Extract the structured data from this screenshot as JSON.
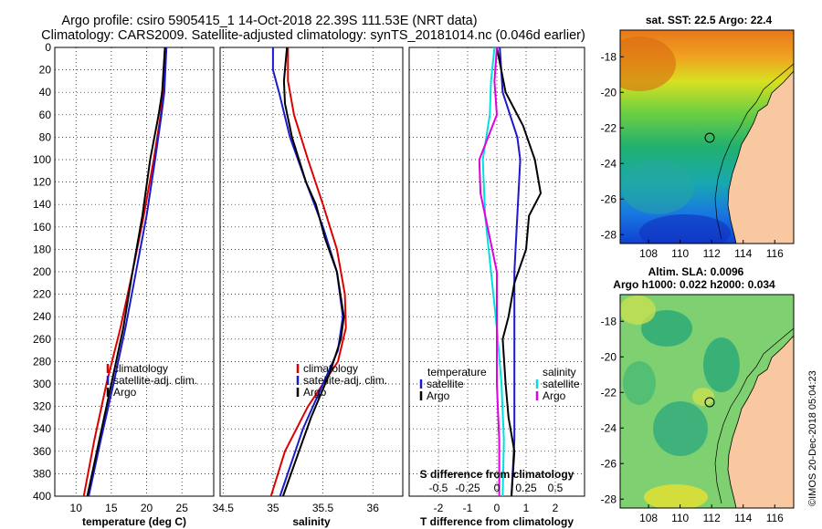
{
  "title": {
    "line1": "Argo profile: csiro 5905415_1 14-Oct-2018 22.39S 111.53E (NRT data)",
    "line2": "Climatology: CARS2009. Satellite-adjusted climatology: synTS_20181014.nc (0.046d earlier)"
  },
  "colors": {
    "climatology": "#dd0000",
    "satellite": "#1a1acc",
    "argo": "#000000",
    "sat_salinity": "#00e0e0",
    "clim_salinity": "#e000e0"
  },
  "watermark": "©IMOS 20-Dec-2018 05:04:23",
  "chart_data": [
    {
      "type": "line",
      "id": "temperature",
      "xlabel": "temperature (deg C)",
      "xlim": [
        7,
        29.5
      ],
      "ylim": [
        400,
        0
      ],
      "xticks": [
        10,
        15,
        20,
        25
      ],
      "yticks": [
        0,
        20,
        40,
        60,
        80,
        100,
        120,
        140,
        160,
        180,
        200,
        220,
        240,
        260,
        280,
        300,
        320,
        340,
        360,
        380,
        400
      ],
      "legend": [
        "climatology",
        "satellite-adj. clim.",
        "Argo"
      ],
      "series": [
        {
          "name": "climatology",
          "color": "climatology",
          "depth": [
            0,
            40,
            60,
            100,
            150,
            200,
            250,
            300,
            350,
            400
          ],
          "values": [
            22.6,
            22.3,
            22.0,
            21.0,
            19.6,
            18.0,
            16.3,
            14.3,
            12.6,
            11.1
          ]
        },
        {
          "name": "satellite-adj. clim.",
          "color": "satellite",
          "depth": [
            0,
            40,
            60,
            100,
            150,
            200,
            250,
            300,
            350,
            400
          ],
          "values": [
            22.8,
            22.5,
            22.1,
            21.2,
            20.0,
            18.5,
            17.0,
            15.3,
            13.5,
            11.8
          ]
        },
        {
          "name": "Argo",
          "color": "argo",
          "depth": [
            0,
            40,
            60,
            100,
            150,
            200,
            250,
            300,
            350,
            400
          ],
          "values": [
            22.6,
            22.2,
            21.7,
            20.5,
            19.4,
            18.0,
            16.7,
            15.0,
            13.3,
            11.6
          ]
        }
      ]
    },
    {
      "type": "line",
      "id": "salinity",
      "xlabel": "salinity",
      "xlim": [
        34.47,
        36.3
      ],
      "ylim": [
        400,
        0
      ],
      "xticks": [
        34.5,
        35,
        35.5,
        36
      ],
      "legend": [
        "climatology",
        "satellite-adj. clim.",
        "Argo"
      ],
      "series": [
        {
          "name": "climatology",
          "color": "climatology",
          "depth": [
            0,
            30,
            60,
            100,
            140,
            180,
            220,
            250,
            280,
            320,
            360,
            400
          ],
          "values": [
            35.15,
            35.15,
            35.21,
            35.35,
            35.5,
            35.64,
            35.72,
            35.73,
            35.65,
            35.35,
            35.12,
            34.98
          ]
        },
        {
          "name": "satellite-adj. clim.",
          "color": "satellite",
          "depth": [
            0,
            20,
            40,
            80,
            120,
            160,
            200,
            240,
            270,
            300,
            340,
            400
          ],
          "values": [
            35.0,
            35.0,
            35.06,
            35.17,
            35.33,
            35.5,
            35.64,
            35.7,
            35.65,
            35.5,
            35.3,
            35.07
          ]
        },
        {
          "name": "Argo",
          "color": "argo",
          "depth": [
            0,
            30,
            50,
            80,
            120,
            140,
            170,
            200,
            240,
            260,
            290,
            330,
            370,
            400
          ],
          "values": [
            35.14,
            35.11,
            35.12,
            35.19,
            35.33,
            35.43,
            35.52,
            35.64,
            35.71,
            35.68,
            35.57,
            35.38,
            35.22,
            35.1
          ]
        }
      ]
    },
    {
      "type": "line",
      "id": "difference",
      "xlabel": "T difference from climatology",
      "xlabel2": "S difference from climatology",
      "xlim": [
        -3,
        3
      ],
      "ylim": [
        400,
        0
      ],
      "xticks": [
        -2,
        -1,
        0,
        1,
        2
      ],
      "xticks2": [
        -0.5,
        -0.25,
        0,
        0.25,
        0.5
      ],
      "xticks2_labels": [
        "-0.5",
        "-0.25",
        "0",
        "0.25",
        "0.5"
      ],
      "legend_temperature": {
        "title": "temperature",
        "entries": [
          "satellite",
          "Argo"
        ]
      },
      "legend_salinity": {
        "title": "salinity",
        "entries": [
          "satellite",
          "Argo"
        ]
      },
      "series": [
        {
          "name": "T satellite",
          "color": "satellite",
          "depth": [
            0,
            40,
            80,
            100,
            150,
            200,
            250,
            300,
            350,
            400
          ],
          "values": [
            0.1,
            0.2,
            0.7,
            0.8,
            0.7,
            0.6,
            0.6,
            0.6,
            0.6,
            0.5
          ]
        },
        {
          "name": "T Argo",
          "color": "argo",
          "depth": [
            0,
            40,
            70,
            100,
            130,
            150,
            180,
            210,
            240,
            260,
            300,
            330,
            360,
            400
          ],
          "values": [
            0.0,
            0.3,
            0.9,
            1.3,
            1.5,
            1.1,
            1.0,
            0.6,
            0.4,
            0.2,
            0.3,
            0.4,
            0.6,
            0.5
          ]
        },
        {
          "name": "S satellite",
          "color": "sat_salinity",
          "depth": [
            0,
            30,
            60,
            100,
            150,
            200,
            250,
            300,
            350,
            400
          ],
          "values": [
            -0.02,
            -0.05,
            -0.06,
            -0.12,
            -0.1,
            -0.05,
            0.0,
            0.04,
            0.06,
            0.05
          ]
        },
        {
          "name": "S Argo",
          "color": "clim_salinity",
          "depth": [
            0,
            30,
            60,
            100,
            130,
            160,
            200,
            250,
            300,
            350,
            400
          ],
          "values": [
            0.0,
            -0.02,
            0.0,
            -0.15,
            -0.14,
            -0.08,
            0.0,
            0.0,
            0.0,
            0.02,
            0.02
          ]
        }
      ]
    },
    {
      "type": "heatmap",
      "id": "sst_map",
      "title": "sat. SST: 22.5 Argo: 22.4",
      "xlim": [
        106.2,
        117.2
      ],
      "ylim": [
        -28.5,
        -16.5
      ],
      "xticks": [
        108,
        110,
        112,
        114,
        116
      ],
      "yticks": [
        -18,
        -20,
        -22,
        -24,
        -26,
        -28
      ],
      "argo_position": [
        111.53,
        -22.39
      ]
    },
    {
      "type": "heatmap",
      "id": "sla_map",
      "title_line1": "Altim. SLA: 0.0096",
      "title_line2": "Argo h1000: 0.022 h2000: 0.034",
      "xlim": [
        106.2,
        117.2
      ],
      "ylim": [
        -28.5,
        -16.5
      ],
      "xticks": [
        108,
        110,
        112,
        114,
        116
      ],
      "yticks": [
        -18,
        -20,
        -22,
        -24,
        -26,
        -28
      ],
      "argo_position": [
        111.53,
        -22.39
      ]
    }
  ]
}
